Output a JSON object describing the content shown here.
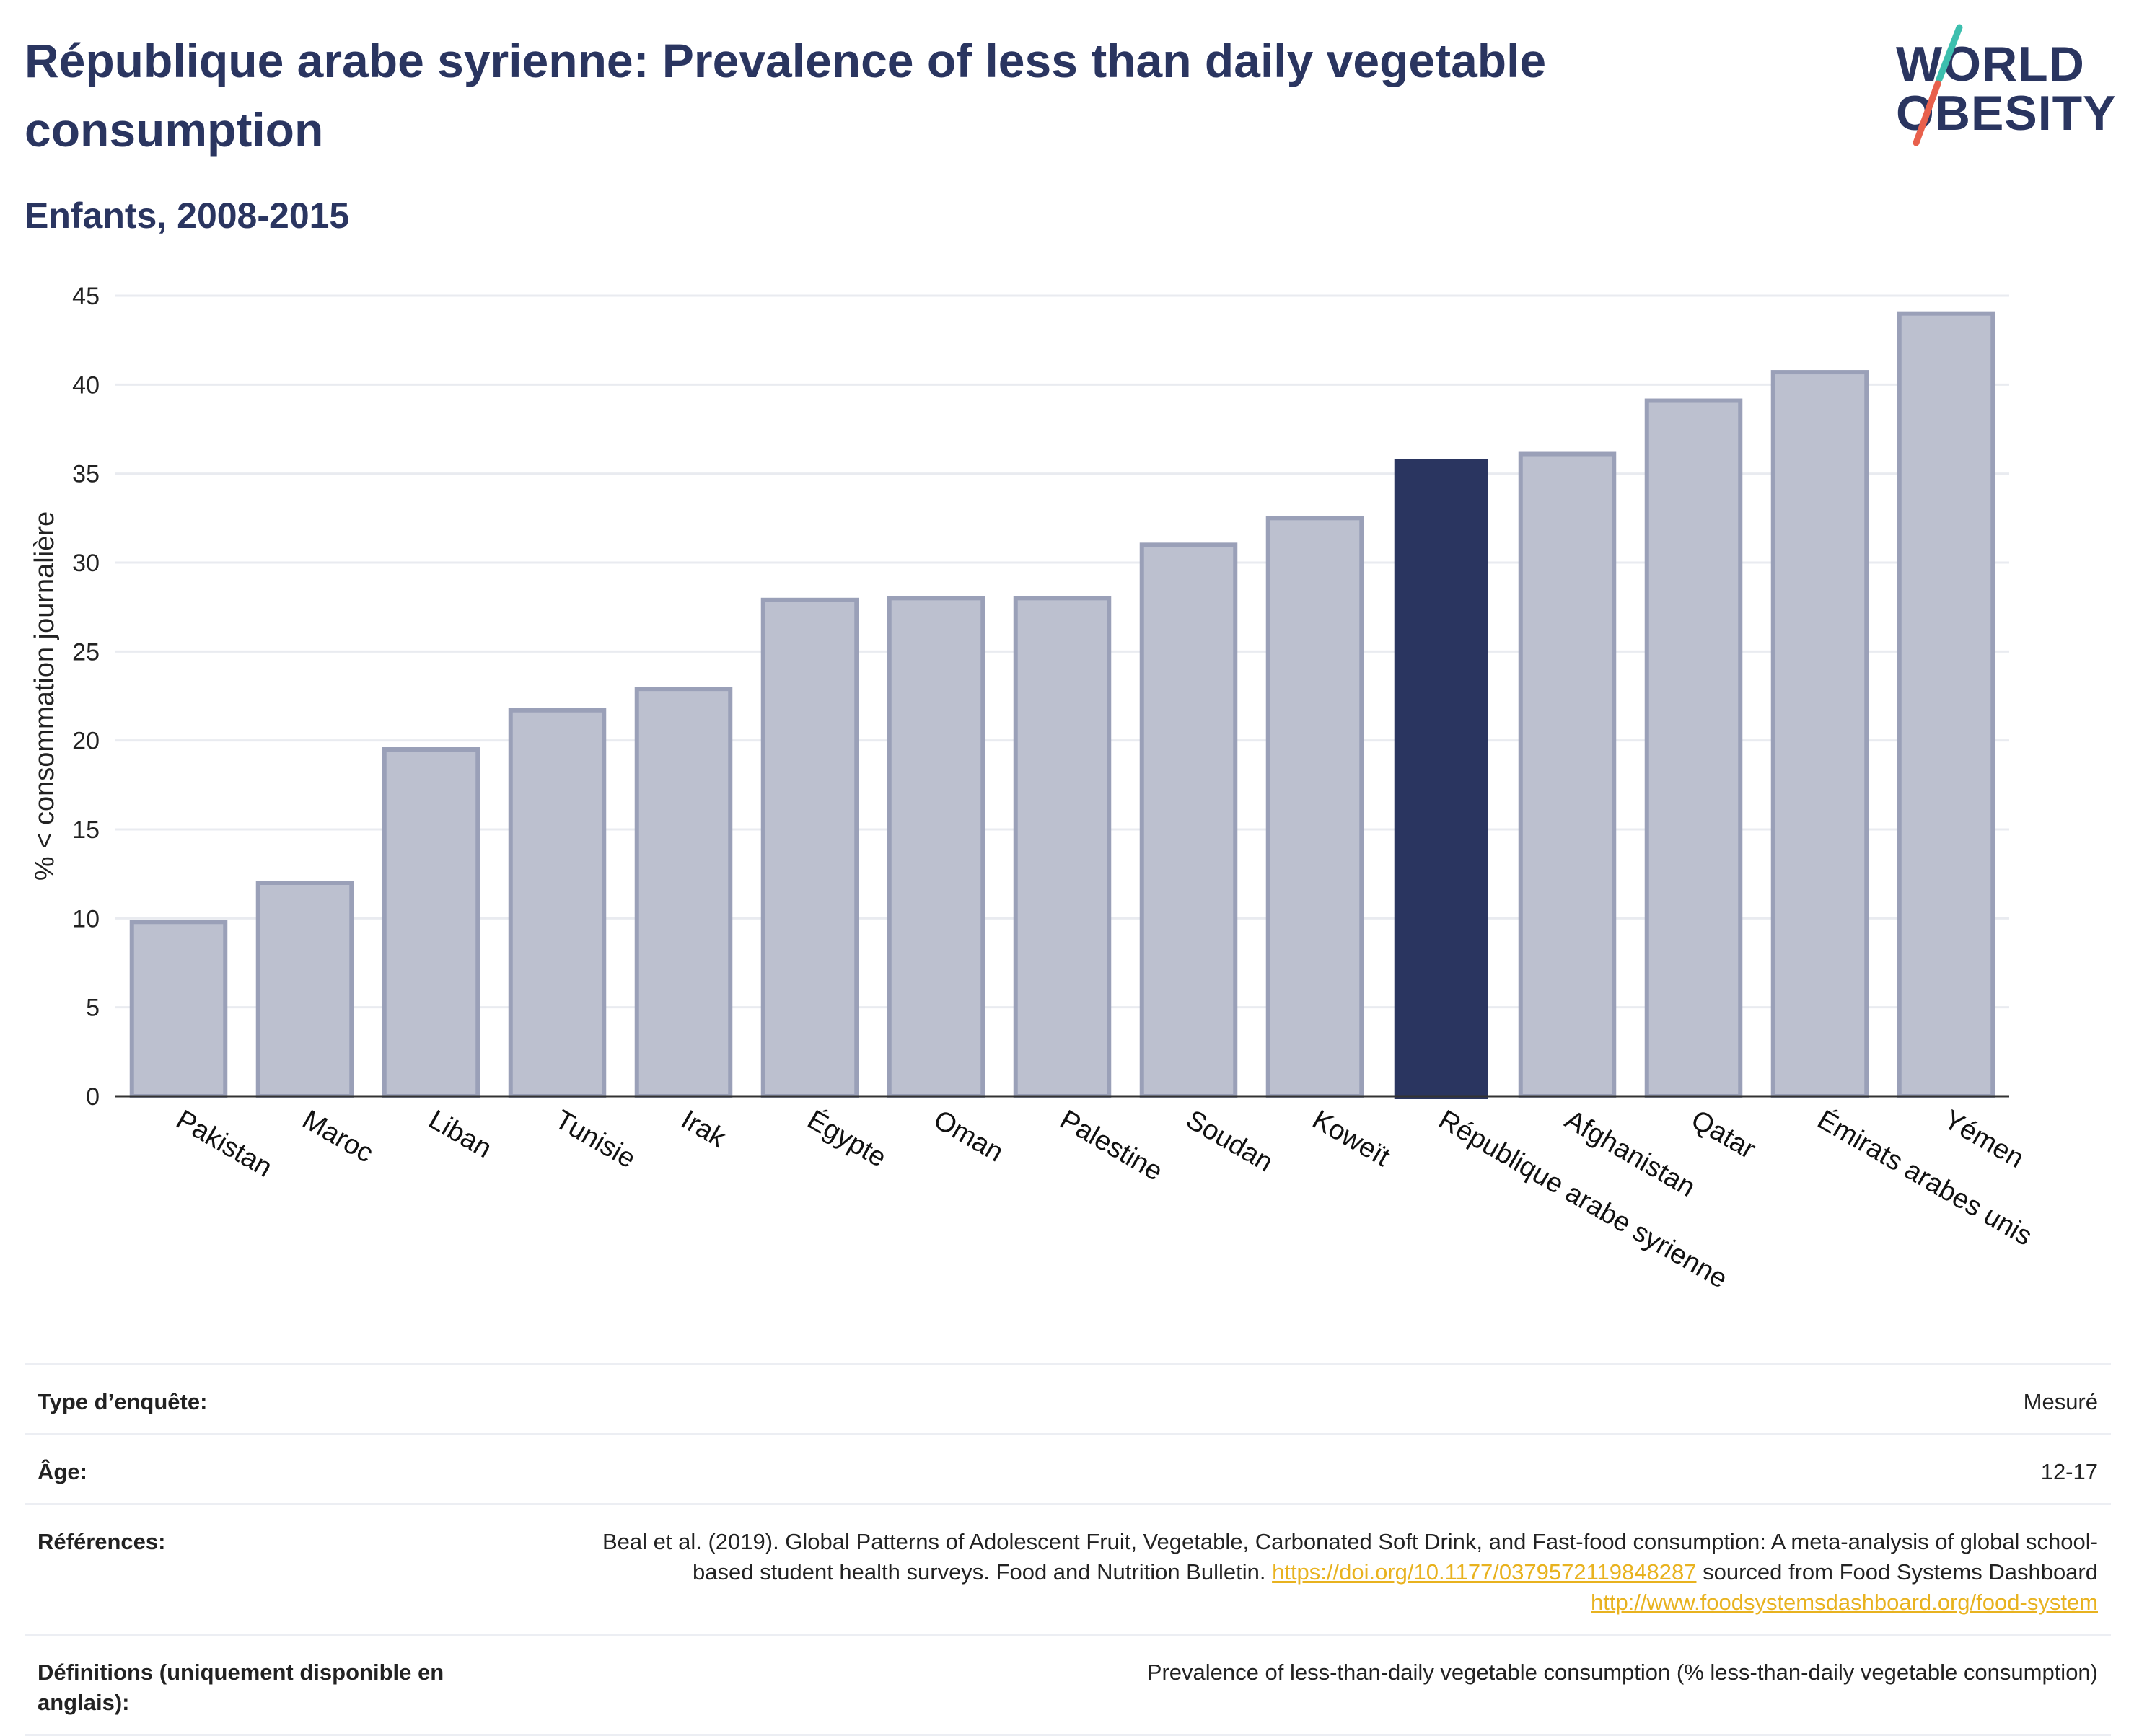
{
  "header": {
    "title": "République arabe syrienne: Prevalence of less than daily vegetable consumption",
    "subtitle": "Enfants, 2008-2015"
  },
  "logo": {
    "line1": "WORLD",
    "line2": "OBESITY",
    "colors": {
      "teal": "#3cbfae",
      "coral": "#e8604c"
    }
  },
  "chart_data": {
    "type": "bar",
    "title": "République arabe syrienne: Prevalence of less than daily vegetable consumption",
    "subtitle": "Enfants, 2008-2015",
    "xlabel": "",
    "ylabel": "% < consommation journalière",
    "ylim": [
      0,
      45
    ],
    "yticks": [
      0,
      5,
      10,
      15,
      20,
      25,
      30,
      35,
      40,
      45
    ],
    "grid": true,
    "categories": [
      "Pakistan",
      "Maroc",
      "Liban",
      "Tunisie",
      "Irak",
      "Égypte",
      "Oman",
      "Palestine",
      "Soudan",
      "Koweït",
      "République arabe syrienne",
      "Afghanistan",
      "Qatar",
      "Émirats arabes unis",
      "Yémen"
    ],
    "values": [
      9.8,
      12.0,
      19.5,
      21.7,
      22.9,
      27.9,
      28.0,
      28.0,
      31.0,
      32.5,
      35.8,
      36.1,
      39.1,
      40.7,
      44.0
    ],
    "highlight": "République arabe syrienne",
    "colors": {
      "bar": "#bcc0cf",
      "bar_border": "#9aa0b8",
      "highlight": "#2a3560",
      "grid": "#e9ebf0",
      "axis": "#333333"
    }
  },
  "info": {
    "rows": [
      {
        "label": "Type d’enquête:",
        "value": "Mesuré"
      },
      {
        "label": "Âge:",
        "value": "12-17"
      },
      {
        "label": "Références:",
        "value_prefix": "Beal et al. (2019). Global Patterns of Adolescent Fruit, Vegetable, Carbonated Soft Drink, and Fast-food consumption: A meta-analysis of global school-based student health surveys. Food and Nutrition Bulletin. ",
        "link1": "https://doi.org/10.1177/0379572119848287",
        "value_middle": " sourced from Food Systems Dashboard ",
        "link2": "http://www.foodsystemsdashboard.org/food-system"
      },
      {
        "label": "Définitions (uniquement disponible en anglais):",
        "value": "Prevalence of less-than-daily vegetable consumption (% less-than-daily vegetable consumption)"
      }
    ]
  }
}
